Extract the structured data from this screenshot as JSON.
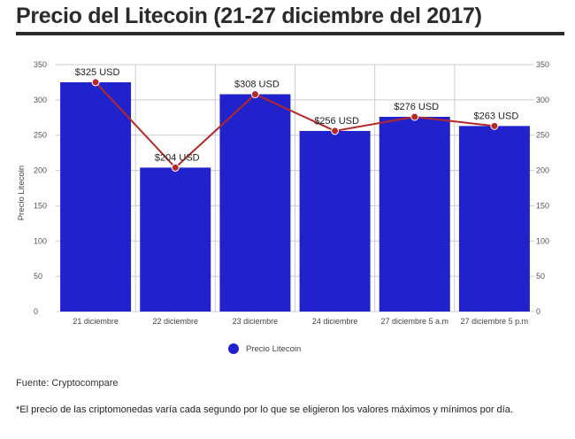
{
  "page": {
    "title": "Precio del Litecoin (21-27 diciembre del 2017)",
    "source": "Fuente: Cryptocompare",
    "note": "*El precio de las criptomonedas varía cada segundo por lo que se eligieron los valores máximos y mínimos por día."
  },
  "colors": {
    "bar": "#2222cc",
    "line": "#b52828",
    "grid": "#cccccc",
    "marker": "#b52828"
  },
  "chart_data": {
    "type": "bar",
    "title": "",
    "xlabel": "",
    "ylabel": "Precio Litecoin",
    "ylim": [
      0,
      350
    ],
    "yticks": [
      0,
      50,
      100,
      150,
      200,
      250,
      300,
      350
    ],
    "grid": true,
    "legend_position": "bottom",
    "categories": [
      "21 diciembre",
      "22 diciembre",
      "23 diciembre",
      "24 diciembre",
      "27 diciembre 5 a.m",
      "27 diciembre 5 p.m"
    ],
    "series": [
      {
        "name": "Precio Litecoin",
        "kind": "bar",
        "values": [
          325,
          204,
          308,
          256,
          276,
          263
        ]
      },
      {
        "kind": "line",
        "values": [
          325,
          204,
          308,
          256,
          276,
          263
        ]
      }
    ],
    "data_labels": [
      "$325 USD",
      "$204 USD",
      "$308 USD",
      "$256 USD",
      "$276 USD",
      "$263 USD"
    ]
  }
}
